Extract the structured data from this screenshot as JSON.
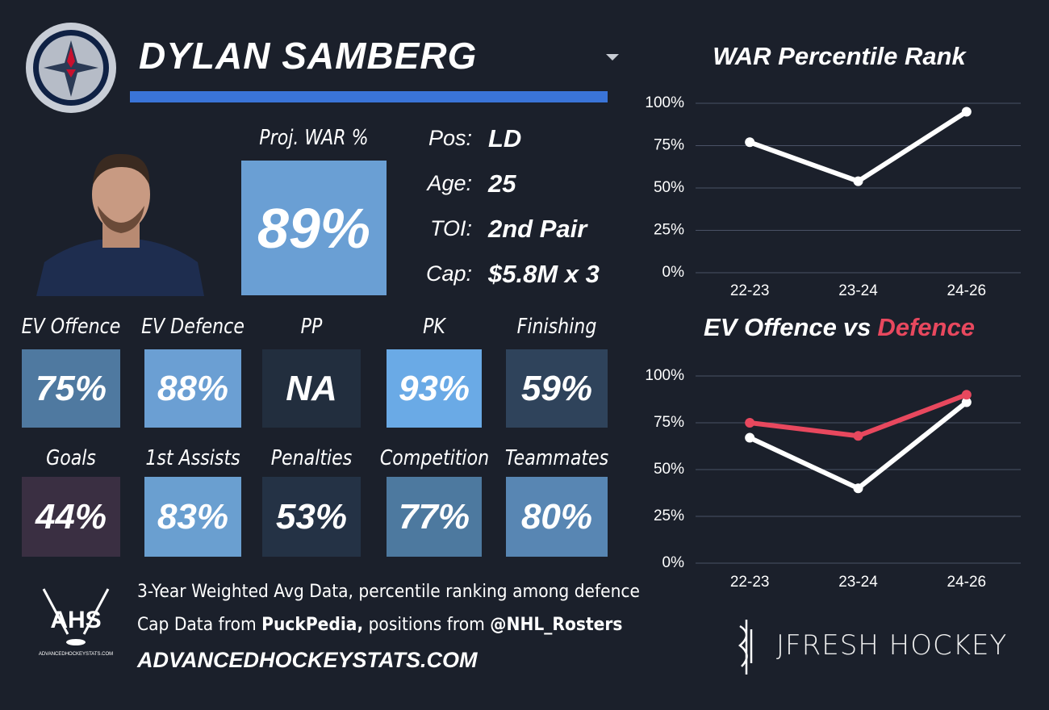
{
  "header": {
    "player_name": "DYLAN SAMBERG"
  },
  "projection": {
    "label": "Proj. WAR %",
    "value": "89%",
    "color": "#6a9fd4"
  },
  "info": [
    {
      "label": "Pos:",
      "value": "LD"
    },
    {
      "label": "Age:",
      "value": "25"
    },
    {
      "label": "TOI:",
      "value": "2nd Pair"
    },
    {
      "label": "Cap:",
      "value": "$5.8M x 3"
    }
  ],
  "tiles": [
    {
      "label": "EV Offence",
      "value": "75%",
      "color": "#4f79a0"
    },
    {
      "label": "EV Defence",
      "value": "88%",
      "color": "#6b9fd3"
    },
    {
      "label": "PP",
      "value": "NA",
      "color": "#222e3e"
    },
    {
      "label": "PK",
      "value": "93%",
      "color": "#6aaae6"
    },
    {
      "label": "Finishing",
      "value": "59%",
      "color": "#2f435b"
    },
    {
      "label": "Goals",
      "value": "44%",
      "color": "#3a2f42"
    },
    {
      "label": "1st Assists",
      "value": "83%",
      "color": "#6a9fd0"
    },
    {
      "label": "Penalties",
      "value": "53%",
      "color": "#243245"
    },
    {
      "label": "Competition",
      "value": "77%",
      "color": "#4d799f"
    },
    {
      "label": "Teammates",
      "value": "80%",
      "color": "#5886b3"
    }
  ],
  "footer": {
    "logo_text": "AHS",
    "logo_subtext": "ADVANCEDHOCKEYSTATS.COM",
    "note": "3-Year Weighted Avg Data, percentile ranking among defence",
    "credits": [
      {
        "text": "Cap Data from ",
        "bold": false
      },
      {
        "text": "PuckPedia,",
        "bold": true
      },
      {
        "text": " positions from ",
        "bold": false
      },
      {
        "text": "@NHL_Rosters",
        "bold": true
      }
    ],
    "website": "ADVANCEDHOCKEYSTATS.COM",
    "brand": "JFRESH HOCKEY"
  },
  "chart_data": [
    {
      "type": "line",
      "title": "WAR Percentile Rank",
      "categories": [
        "22-23",
        "23-24",
        "24-26"
      ],
      "values": [
        77,
        54,
        95
      ],
      "color": "#ffffff",
      "ylim": [
        0,
        100
      ],
      "yticks": [
        {
          "value": 0,
          "label": "0%"
        },
        {
          "value": 25,
          "label": "25%"
        },
        {
          "value": 50,
          "label": "50%"
        },
        {
          "value": 75,
          "label": "75%"
        },
        {
          "value": 100,
          "label": "100%"
        }
      ],
      "grid": true
    },
    {
      "type": "line",
      "title_joiner": "vs",
      "categories": [
        "22-23",
        "23-24",
        "24-26"
      ],
      "series": [
        {
          "name": "EV Offence",
          "color": "#ffffff",
          "values": [
            67,
            40,
            86
          ]
        },
        {
          "name": "Defence",
          "color": "#e8485e",
          "values": [
            75,
            68,
            90
          ]
        }
      ],
      "ylim": [
        0,
        100
      ],
      "yticks": [
        {
          "value": 0,
          "label": "0%"
        },
        {
          "value": 25,
          "label": "25%"
        },
        {
          "value": 50,
          "label": "50%"
        },
        {
          "value": 75,
          "label": "75%"
        },
        {
          "value": 100,
          "label": "100%"
        }
      ],
      "grid": true
    }
  ]
}
